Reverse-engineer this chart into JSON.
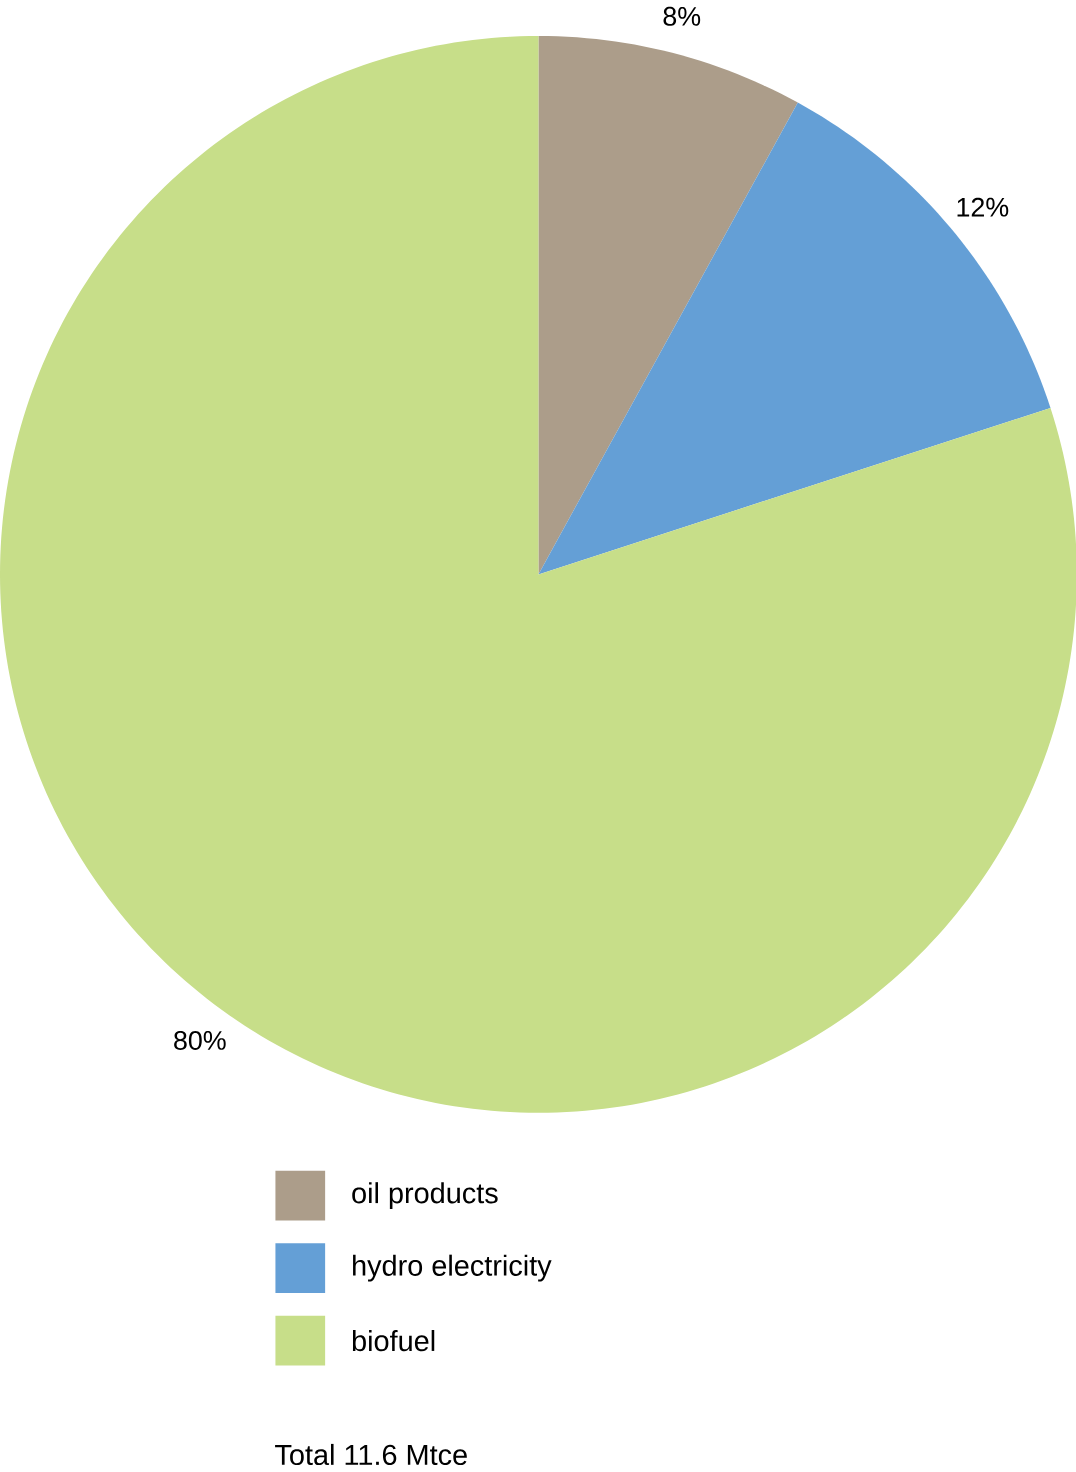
{
  "chart_data": {
    "type": "pie",
    "categories": [
      "oil products",
      "hydro electricity",
      "biofuel"
    ],
    "values": [
      8,
      12,
      80
    ],
    "colors": [
      "#ac9d8a",
      "#649fd6",
      "#c7de89"
    ],
    "value_labels": [
      "8%",
      "12%",
      "80%"
    ],
    "legend": "bottom",
    "annotations": [
      "Total 11.6 Mtce"
    ]
  }
}
